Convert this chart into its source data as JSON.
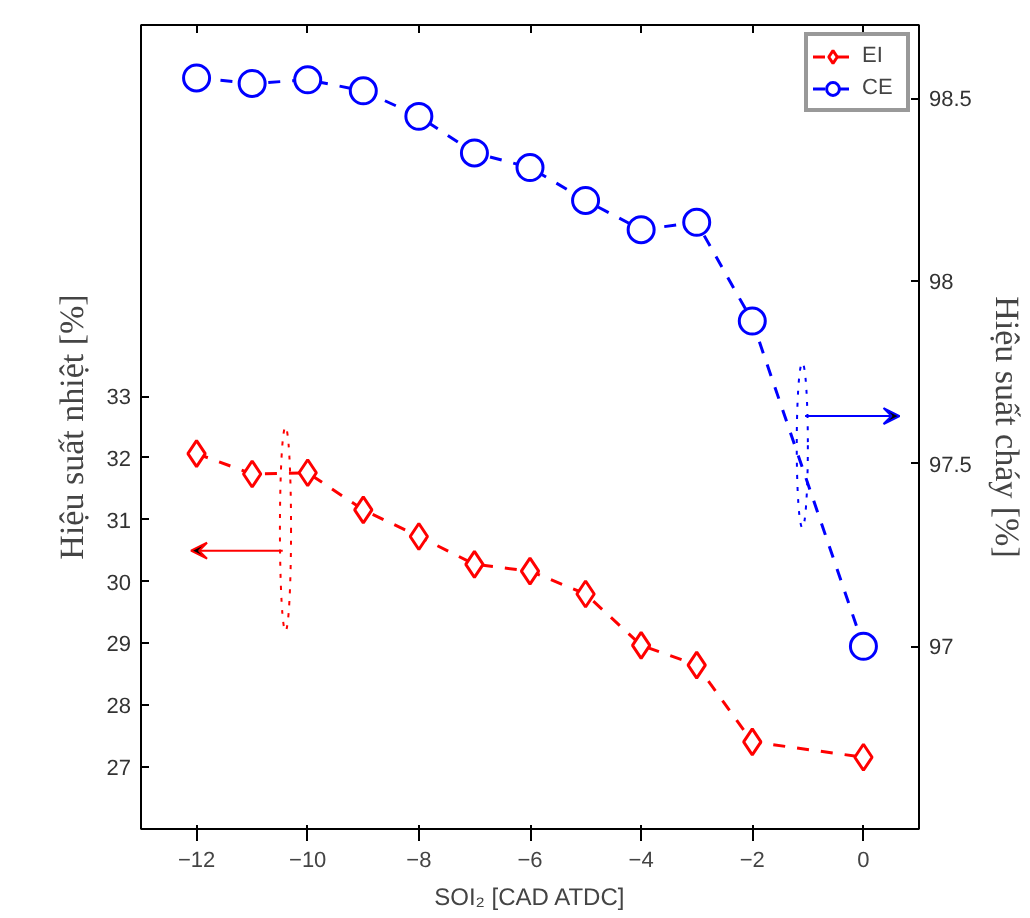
{
  "chart_data": {
    "type": "line",
    "xlabel": "SOI₂ [CAD ATDC]",
    "ylabel": "Hiệu suất nhiệt [%]",
    "y2label": "Hiệu suất cháy [%]",
    "x": [
      -12,
      -11,
      -10,
      -9,
      -8,
      -7,
      -6,
      -5,
      -4,
      -3,
      -2,
      0
    ],
    "series": [
      {
        "name": "EI",
        "color": "#ff0000",
        "marker": "diamond",
        "values": [
          32.07,
          31.74,
          31.76,
          31.16,
          30.73,
          30.28,
          30.17,
          29.8,
          28.97,
          28.65,
          27.41,
          27.16
        ]
      },
      {
        "name": "CE",
        "color": "#0000ff",
        "marker": "circle",
        "axis": "y2",
        "values": [
          98.555,
          98.54,
          98.55,
          98.52,
          98.45,
          98.35,
          98.31,
          98.22,
          98.14,
          98.16,
          97.89,
          97.0
        ]
      }
    ],
    "xlim": [
      -13,
      1
    ],
    "xticks": [
      -12,
      -10,
      -8,
      -6,
      -4,
      -2,
      0
    ],
    "ylim": [
      26,
      39
    ],
    "yticks": [
      27,
      28,
      29,
      30,
      31,
      32,
      33
    ],
    "y2lim": [
      96.5,
      98.7
    ],
    "y2ticks": [
      97,
      {
        "value": 97.5,
        "label": "97.5"
      },
      98,
      {
        "value": 98.5,
        "label": "98.5"
      }
    ],
    "line_style": "dashed",
    "grid": false,
    "legend": "top right"
  }
}
